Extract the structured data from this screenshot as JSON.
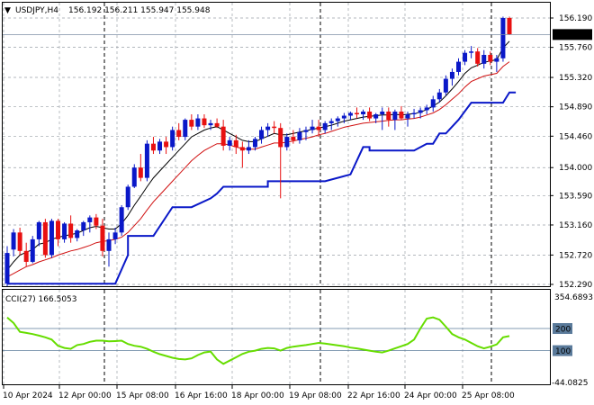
{
  "header": {
    "symbol": "USDJPY,H4",
    "ohlc": "156.192 156.211 155.947 155.948"
  },
  "indicator": {
    "label": "CCI(27) 166.5053",
    "max_label": "354.6893",
    "min_label": "-44.0825",
    "levels": [
      "200",
      "100"
    ]
  },
  "price_axis": {
    "ticks": [
      "156.190",
      "155.760",
      "155.320",
      "154.890",
      "154.460",
      "154.000",
      "153.590",
      "153.160",
      "152.720",
      "152.290"
    ],
    "current_price": "155.948"
  },
  "time_axis": {
    "ticks": [
      "10 Apr 2024",
      "12 Apr 00:00",
      "15 Apr 08:00",
      "16 Apr 16:00",
      "18 Apr 00:00",
      "19 Apr 08:00",
      "22 Apr 16:00",
      "24 Apr 00:00",
      "25 Apr 08:00"
    ]
  },
  "colors": {
    "bull": "#0a18c8",
    "bear": "#e81010",
    "ma_fast": "#000000",
    "ma_slow": "#d01010",
    "stop_line": "#0a18c8",
    "cci": "#66dd00",
    "grid": "#9aa0a8",
    "current_price_line": "#7f8fa6"
  },
  "chart_data": {
    "type": "candlestick",
    "ylim": [
      152.26,
      156.3
    ],
    "grid": true,
    "candles": [
      [
        152.3,
        152.85,
        152.25,
        152.75
      ],
      [
        152.8,
        153.1,
        152.7,
        153.05
      ],
      [
        153.05,
        153.12,
        152.72,
        152.78
      ],
      [
        152.78,
        152.9,
        152.55,
        152.62
      ],
      [
        152.62,
        153.0,
        152.6,
        152.95
      ],
      [
        152.95,
        153.22,
        152.85,
        153.2
      ],
      [
        153.2,
        153.25,
        152.68,
        152.72
      ],
      [
        152.72,
        153.25,
        152.68,
        153.22
      ],
      [
        153.22,
        153.25,
        152.85,
        152.95
      ],
      [
        152.95,
        153.2,
        152.9,
        153.18
      ],
      [
        153.18,
        153.3,
        152.9,
        152.97
      ],
      [
        152.97,
        153.1,
        152.92,
        153.08
      ],
      [
        153.08,
        153.22,
        153.0,
        153.2
      ],
      [
        153.2,
        153.3,
        153.05,
        153.27
      ],
      [
        153.27,
        153.32,
        153.1,
        153.15
      ],
      [
        153.15,
        153.25,
        152.7,
        152.78
      ],
      [
        152.78,
        153.05,
        152.55,
        152.95
      ],
      [
        152.95,
        153.12,
        152.88,
        153.05
      ],
      [
        153.05,
        153.45,
        153.0,
        153.42
      ],
      [
        153.42,
        153.75,
        153.38,
        153.72
      ],
      [
        153.72,
        154.05,
        153.7,
        154.0
      ],
      [
        154.0,
        154.2,
        153.8,
        153.85
      ],
      [
        153.85,
        154.4,
        153.8,
        154.35
      ],
      [
        154.35,
        154.45,
        154.2,
        154.25
      ],
      [
        154.25,
        154.42,
        154.2,
        154.38
      ],
      [
        154.38,
        154.45,
        154.2,
        154.3
      ],
      [
        154.3,
        154.6,
        154.25,
        154.55
      ],
      [
        154.55,
        154.65,
        154.4,
        154.45
      ],
      [
        154.45,
        154.72,
        154.4,
        154.7
      ],
      [
        154.7,
        154.78,
        154.55,
        154.6
      ],
      [
        154.6,
        154.78,
        154.55,
        154.72
      ],
      [
        154.72,
        154.78,
        154.58,
        154.62
      ],
      [
        154.62,
        154.7,
        154.55,
        154.65
      ],
      [
        154.65,
        154.72,
        154.58,
        154.6
      ],
      [
        154.6,
        154.7,
        154.25,
        154.32
      ],
      [
        154.32,
        154.45,
        154.25,
        154.4
      ],
      [
        154.4,
        154.48,
        154.2,
        154.3
      ],
      [
        154.3,
        154.38,
        154.0,
        154.25
      ],
      [
        154.25,
        154.4,
        154.2,
        154.3
      ],
      [
        154.3,
        154.45,
        154.25,
        154.42
      ],
      [
        154.42,
        154.6,
        154.35,
        154.55
      ],
      [
        154.55,
        154.65,
        154.45,
        154.6
      ],
      [
        154.6,
        154.68,
        154.5,
        154.58
      ],
      [
        154.58,
        154.65,
        153.55,
        154.3
      ],
      [
        154.3,
        154.5,
        154.25,
        154.45
      ],
      [
        154.45,
        154.55,
        154.35,
        154.4
      ],
      [
        154.4,
        154.58,
        154.35,
        154.52
      ],
      [
        154.52,
        154.6,
        154.4,
        154.55
      ],
      [
        154.55,
        154.7,
        154.5,
        154.6
      ],
      [
        154.6,
        154.7,
        154.45,
        154.55
      ],
      [
        154.55,
        154.68,
        154.5,
        154.65
      ],
      [
        154.65,
        154.72,
        154.55,
        154.68
      ],
      [
        154.68,
        154.75,
        154.6,
        154.72
      ],
      [
        154.72,
        154.8,
        154.65,
        154.76
      ],
      [
        154.76,
        154.82,
        154.7,
        154.8
      ],
      [
        154.8,
        154.88,
        154.72,
        154.78
      ],
      [
        154.78,
        154.85,
        154.7,
        154.82
      ],
      [
        154.82,
        154.88,
        154.68,
        154.72
      ],
      [
        154.72,
        154.8,
        154.65,
        154.78
      ],
      [
        154.78,
        154.88,
        154.55,
        154.82
      ],
      [
        154.82,
        154.88,
        154.6,
        154.7
      ],
      [
        154.7,
        154.85,
        154.55,
        154.82
      ],
      [
        154.82,
        154.9,
        154.7,
        154.72
      ],
      [
        154.72,
        154.82,
        154.6,
        154.78
      ],
      [
        154.78,
        154.86,
        154.72,
        154.8
      ],
      [
        154.8,
        154.88,
        154.72,
        154.84
      ],
      [
        154.84,
        154.92,
        154.78,
        154.88
      ],
      [
        154.88,
        155.05,
        154.82,
        155.0
      ],
      [
        155.0,
        155.15,
        154.95,
        155.1
      ],
      [
        155.1,
        155.35,
        155.05,
        155.3
      ],
      [
        155.3,
        155.45,
        155.2,
        155.4
      ],
      [
        155.4,
        155.6,
        155.35,
        155.55
      ],
      [
        155.55,
        155.72,
        155.5,
        155.68
      ],
      [
        155.68,
        155.78,
        155.6,
        155.7
      ],
      [
        155.7,
        155.75,
        155.48,
        155.52
      ],
      [
        155.52,
        155.72,
        155.45,
        155.65
      ],
      [
        155.65,
        155.7,
        155.5,
        155.55
      ],
      [
        155.55,
        155.65,
        155.4,
        155.6
      ],
      [
        155.6,
        156.21,
        155.55,
        156.19
      ],
      [
        156.19,
        156.21,
        155.94,
        155.948
      ]
    ],
    "ma_fast": [
      152.5,
      152.62,
      152.72,
      152.76,
      152.8,
      152.88,
      152.9,
      152.95,
      152.98,
      153.0,
      153.02,
      153.04,
      153.08,
      153.12,
      153.14,
      153.12,
      153.1,
      153.1,
      153.18,
      153.3,
      153.45,
      153.58,
      153.72,
      153.85,
      153.95,
      154.05,
      154.15,
      154.25,
      154.35,
      154.45,
      154.5,
      154.55,
      154.58,
      154.6,
      154.55,
      154.5,
      154.45,
      154.4,
      154.38,
      154.38,
      154.42,
      154.46,
      154.5,
      154.48,
      154.48,
      154.5,
      154.52,
      154.54,
      154.56,
      154.58,
      154.6,
      154.62,
      154.65,
      154.68,
      154.7,
      154.72,
      154.74,
      154.75,
      154.76,
      154.77,
      154.77,
      154.78,
      154.77,
      154.78,
      154.79,
      154.81,
      154.85,
      154.9,
      154.96,
      155.05,
      155.15,
      155.26,
      155.38,
      155.46,
      155.5,
      155.54,
      155.56,
      155.58,
      155.75,
      155.85
    ],
    "ma_slow": [
      152.4,
      152.45,
      152.5,
      152.55,
      152.58,
      152.62,
      152.65,
      152.68,
      152.72,
      152.75,
      152.78,
      152.8,
      152.83,
      152.86,
      152.9,
      152.92,
      152.93,
      152.95,
      152.98,
      153.05,
      153.15,
      153.25,
      153.38,
      153.5,
      153.6,
      153.7,
      153.8,
      153.9,
      154.0,
      154.1,
      154.18,
      154.25,
      154.3,
      154.35,
      154.35,
      154.33,
      154.3,
      154.28,
      154.27,
      154.27,
      154.3,
      154.33,
      154.36,
      154.36,
      154.37,
      154.39,
      154.41,
      154.43,
      154.45,
      154.48,
      154.5,
      154.53,
      154.56,
      154.59,
      154.61,
      154.63,
      154.65,
      154.66,
      154.67,
      154.68,
      154.69,
      154.7,
      154.7,
      154.71,
      154.72,
      154.74,
      154.77,
      154.8,
      154.85,
      154.92,
      155.0,
      155.08,
      155.18,
      155.26,
      155.3,
      155.34,
      155.36,
      155.38,
      155.48,
      155.55
    ],
    "stop_line": [
      [
        0,
        152.3
      ],
      [
        17,
        152.3
      ],
      [
        19,
        152.72
      ],
      [
        19,
        153.0
      ],
      [
        23,
        153.0
      ],
      [
        26,
        153.42
      ],
      [
        29,
        153.42
      ],
      [
        32,
        153.55
      ],
      [
        33,
        153.62
      ],
      [
        34,
        153.72
      ],
      [
        41,
        153.72
      ],
      [
        41,
        153.8
      ],
      [
        50,
        153.8
      ],
      [
        54,
        153.9
      ],
      [
        56,
        154.3
      ],
      [
        57,
        154.3
      ],
      [
        57,
        154.25
      ],
      [
        64,
        154.25
      ],
      [
        66,
        154.35
      ],
      [
        67,
        154.35
      ],
      [
        68,
        154.5
      ],
      [
        69,
        154.5
      ],
      [
        70,
        154.6
      ],
      [
        71,
        154.7
      ],
      [
        73,
        154.95
      ],
      [
        78,
        154.95
      ],
      [
        79,
        155.1
      ],
      [
        80,
        155.1
      ]
    ],
    "cci": [
      250,
      225,
      185,
      180,
      175,
      168,
      160,
      150,
      122,
      112,
      108,
      125,
      130,
      140,
      145,
      145,
      142,
      143,
      145,
      130,
      122,
      118,
      108,
      95,
      84,
      76,
      68,
      62,
      60,
      65,
      80,
      92,
      96,
      60,
      40,
      55,
      70,
      85,
      95,
      100,
      108,
      112,
      110,
      100,
      112,
      118,
      122,
      125,
      130,
      135,
      132,
      128,
      124,
      120,
      114,
      110,
      105,
      100,
      95,
      92,
      100,
      110,
      120,
      130,
      150,
      200,
      245,
      250,
      240,
      208,
      175,
      160,
      150,
      135,
      120,
      110,
      118,
      128,
      160,
      166
    ]
  }
}
